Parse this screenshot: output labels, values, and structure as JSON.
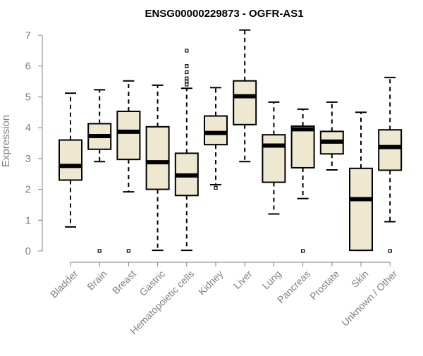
{
  "chart_data": {
    "type": "box",
    "title": "ENSG00000229873 - OGFR-AS1",
    "xlabel": "",
    "ylabel": "Expression",
    "ylim": [
      0,
      7
    ],
    "yticks": [
      0,
      1,
      2,
      3,
      4,
      5,
      6,
      7
    ],
    "grid": false,
    "box_color": "#efe8d0",
    "categories": [
      "Bladder",
      "Brain",
      "Breast",
      "Gastric",
      "Hematopoietic cells",
      "Kidney",
      "Liver",
      "Lung",
      "Pancreas",
      "Prostate",
      "Skin",
      "Unknown / Other"
    ],
    "boxes": [
      {
        "whisker_low": 0.78,
        "q1": 2.3,
        "median": 2.76,
        "q3": 3.6,
        "whisker_high": 5.12,
        "outliers": []
      },
      {
        "whisker_low": 2.9,
        "q1": 3.3,
        "median": 3.73,
        "q3": 4.13,
        "whisker_high": 5.23,
        "outliers": [
          0
        ]
      },
      {
        "whisker_low": 1.92,
        "q1": 2.97,
        "median": 3.87,
        "q3": 4.53,
        "whisker_high": 5.52,
        "outliers": [
          0
        ]
      },
      {
        "whisker_low": 0.02,
        "q1": 2.0,
        "median": 2.88,
        "q3": 4.03,
        "whisker_high": 5.38,
        "outliers": []
      },
      {
        "whisker_low": 0.02,
        "q1": 1.8,
        "median": 2.45,
        "q3": 3.17,
        "whisker_high": 5.28,
        "outliers": [
          5.4,
          5.5,
          5.6,
          5.8,
          6.0,
          6.5
        ]
      },
      {
        "whisker_low": 2.15,
        "q1": 3.45,
        "median": 3.83,
        "q3": 4.38,
        "whisker_high": 5.3,
        "outliers": [
          2.05
        ]
      },
      {
        "whisker_low": 2.9,
        "q1": 4.1,
        "median": 5.02,
        "q3": 5.52,
        "whisker_high": 7.17,
        "outliers": []
      },
      {
        "whisker_low": 1.2,
        "q1": 2.23,
        "median": 3.42,
        "q3": 3.77,
        "whisker_high": 4.83,
        "outliers": []
      },
      {
        "whisker_low": 1.7,
        "q1": 2.7,
        "median": 3.95,
        "q3": 4.05,
        "whisker_high": 4.6,
        "outliers": [
          0
        ]
      },
      {
        "whisker_low": 2.63,
        "q1": 3.15,
        "median": 3.55,
        "q3": 3.88,
        "whisker_high": 4.83,
        "outliers": []
      },
      {
        "whisker_low": 0.02,
        "q1": 0.02,
        "median": 1.68,
        "q3": 2.68,
        "whisker_high": 4.5,
        "outliers": []
      },
      {
        "whisker_low": 0.95,
        "q1": 2.62,
        "median": 3.37,
        "q3": 3.93,
        "whisker_high": 5.63,
        "outliers": [
          0
        ]
      }
    ]
  }
}
